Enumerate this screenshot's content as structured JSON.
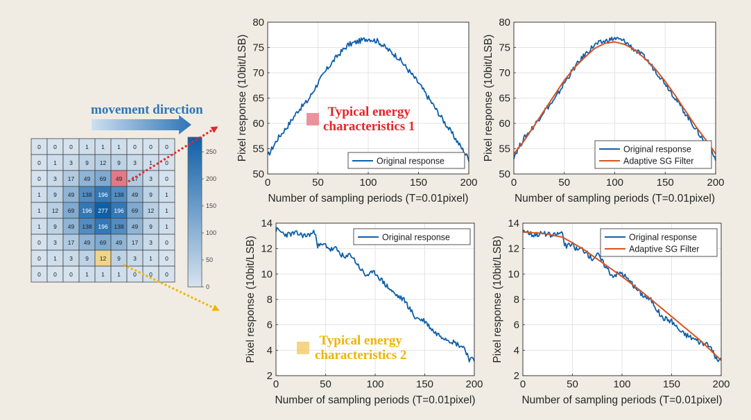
{
  "heatmap": {
    "grid": [
      [
        0,
        0,
        0,
        1,
        1,
        1,
        0,
        0,
        0
      ],
      [
        0,
        1,
        3,
        9,
        12,
        9,
        3,
        1,
        0
      ],
      [
        0,
        3,
        17,
        49,
        69,
        49,
        17,
        3,
        0
      ],
      [
        1,
        9,
        49,
        138,
        196,
        138,
        49,
        9,
        1
      ],
      [
        1,
        12,
        69,
        196,
        277,
        196,
        69,
        12,
        1
      ],
      [
        1,
        9,
        49,
        138,
        196,
        138,
        49,
        9,
        1
      ],
      [
        0,
        3,
        17,
        49,
        69,
        49,
        17,
        3,
        0
      ],
      [
        0,
        1,
        3,
        9,
        12,
        9,
        3,
        1,
        0
      ],
      [
        0,
        0,
        0,
        1,
        1,
        1,
        0,
        0,
        0
      ]
    ],
    "highlight_red": {
      "row": 2,
      "col": 5
    },
    "highlight_yellow": {
      "row": 7,
      "col": 4
    },
    "colorbar_ticks": [
      "0",
      "50",
      "100",
      "150",
      "200",
      "250"
    ],
    "colorbar_max": 277
  },
  "labels": {
    "movement": "movement direction",
    "annot1_line1": "Typical energy",
    "annot1_line2": "characteristics 1",
    "annot2_line1": "Typical energy",
    "annot2_line2": "characteristics 2"
  },
  "colors": {
    "original": "#0f5fa8",
    "filter": "#d9531e",
    "red": "#e8242a",
    "yellow": "#f0b400",
    "heat_low": "#d6e3ee",
    "heat_high": "#0f5fa8"
  },
  "chart_data": [
    {
      "type": "line",
      "xlabel": "Number of sampling periods (T=0.01pixel)",
      "ylabel": "Pixel response (10bit/LSB)",
      "xlim": [
        0,
        200
      ],
      "ylim": [
        50,
        80
      ],
      "xticks": [
        0,
        50,
        100,
        150,
        200
      ],
      "yticks": [
        50,
        55,
        60,
        65,
        70,
        75,
        80
      ],
      "grid": true,
      "legend": "bottom-right",
      "series": [
        {
          "name": "Original response",
          "x": [
            0,
            10,
            20,
            30,
            40,
            50,
            60,
            70,
            80,
            90,
            100,
            110,
            120,
            130,
            140,
            150,
            160,
            170,
            180,
            190,
            200
          ],
          "values": [
            53.5,
            57,
            59.5,
            62.5,
            64.5,
            68,
            71,
            73.5,
            75.5,
            76.2,
            76.8,
            76.2,
            74.5,
            73,
            70.5,
            68,
            65,
            62,
            59,
            56,
            53
          ]
        }
      ]
    },
    {
      "type": "line",
      "xlabel": "Number of sampling periods (T=0.01pixel)",
      "ylabel": "Pixel response (10bit/LSB)",
      "xlim": [
        0,
        200
      ],
      "ylim": [
        50,
        80
      ],
      "xticks": [
        0,
        50,
        100,
        150,
        200
      ],
      "yticks": [
        50,
        55,
        60,
        65,
        70,
        75,
        80
      ],
      "grid": true,
      "legend": "bottom-right",
      "series": [
        {
          "name": "Original response",
          "x": [
            0,
            10,
            20,
            30,
            40,
            50,
            60,
            70,
            80,
            90,
            100,
            110,
            120,
            130,
            140,
            150,
            160,
            170,
            180,
            190,
            200
          ],
          "values": [
            53.5,
            57,
            59.5,
            62.5,
            64.5,
            68,
            71,
            73.5,
            75.5,
            76.2,
            76.8,
            76.2,
            74.5,
            73,
            70.5,
            68,
            65,
            62,
            59,
            56,
            53
          ]
        },
        {
          "name": "Adaptive SG Filter",
          "x": [
            0,
            10,
            20,
            30,
            40,
            50,
            60,
            70,
            80,
            90,
            100,
            110,
            120,
            130,
            140,
            150,
            160,
            170,
            180,
            190,
            200
          ],
          "values": [
            54,
            56.5,
            59.5,
            62.5,
            65.5,
            68.5,
            71,
            73,
            74.8,
            75.8,
            76.1,
            75.6,
            74.5,
            72.8,
            70.8,
            68.3,
            65.5,
            62.5,
            59.5,
            56.8,
            54
          ]
        }
      ]
    },
    {
      "type": "line",
      "xlabel": "Number of sampling periods (T=0.01pixel)",
      "ylabel": "Pixel response (10bit/LSB)",
      "xlim": [
        0,
        200
      ],
      "ylim": [
        2,
        14
      ],
      "xticks": [
        0,
        50,
        100,
        150,
        200
      ],
      "yticks": [
        2,
        4,
        6,
        8,
        10,
        12,
        14
      ],
      "grid": true,
      "legend": "top-right",
      "series": [
        {
          "name": "Original response",
          "x": [
            0,
            10,
            20,
            30,
            40,
            42,
            50,
            55,
            60,
            70,
            75,
            80,
            90,
            100,
            110,
            120,
            130,
            140,
            150,
            160,
            170,
            180,
            190,
            195,
            200
          ],
          "values": [
            13.5,
            13.1,
            13.2,
            13.0,
            13.3,
            12.2,
            12.3,
            11.9,
            12.0,
            11.2,
            11.6,
            11.0,
            9.9,
            10.1,
            9.2,
            8.4,
            7.9,
            6.6,
            6.3,
            5.4,
            5.0,
            4.6,
            4.2,
            3.3,
            3.2
          ]
        }
      ]
    },
    {
      "type": "line",
      "xlabel": "Number of sampling periods (T=0.01pixel)",
      "ylabel": "Pixel response (10bit/LSB)",
      "xlim": [
        0,
        200
      ],
      "ylim": [
        2,
        14
      ],
      "xticks": [
        0,
        50,
        100,
        150,
        200
      ],
      "yticks": [
        2,
        4,
        6,
        8,
        10,
        12,
        14
      ],
      "grid": true,
      "legend": "top-right",
      "series": [
        {
          "name": "Original response",
          "x": [
            0,
            10,
            20,
            30,
            40,
            42,
            50,
            55,
            60,
            70,
            75,
            80,
            90,
            100,
            110,
            120,
            130,
            140,
            150,
            160,
            170,
            180,
            190,
            195,
            200
          ],
          "values": [
            13.5,
            13.1,
            13.2,
            13.0,
            13.3,
            12.2,
            12.3,
            11.9,
            12.0,
            11.2,
            11.6,
            11.0,
            9.9,
            10.1,
            9.2,
            8.4,
            7.9,
            6.6,
            6.3,
            5.4,
            5.0,
            4.6,
            4.2,
            3.3,
            3.2
          ]
        },
        {
          "name": "Adaptive SG Filter",
          "x": [
            0,
            20,
            40,
            60,
            80,
            100,
            120,
            140,
            160,
            180,
            200
          ],
          "values": [
            13.3,
            13.2,
            12.9,
            12.0,
            10.9,
            9.8,
            8.6,
            7.3,
            6.0,
            4.7,
            3.2
          ]
        }
      ]
    }
  ]
}
